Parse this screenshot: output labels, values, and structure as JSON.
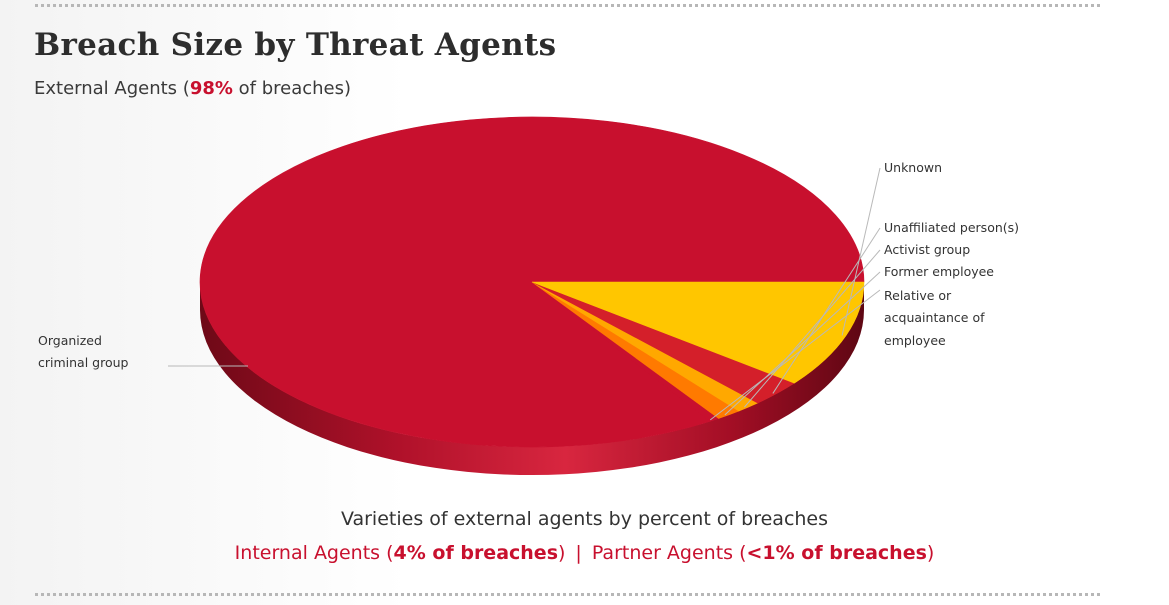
{
  "header": {
    "title": "Breach Size by Threat Agents",
    "subtitle_prefix": "External Agents (",
    "subtitle_highlight": "98%",
    "subtitle_suffix": " of breaches)"
  },
  "chart_data": {
    "type": "pie",
    "style": "3d",
    "title": "Breach Size by Threat Agents",
    "slices": [
      {
        "label": "Organized criminal group",
        "value": 84.0,
        "color": "#c8102e"
      },
      {
        "label": "Relative or acquaintance of employee",
        "value": 0.5,
        "color": "#c8102e"
      },
      {
        "label": "Former employee",
        "value": 1.2,
        "color": "#ff7a00"
      },
      {
        "label": "Activist group",
        "value": 1.2,
        "color": "#ffa800"
      },
      {
        "label": "Unaffiliated person(s)",
        "value": 2.6,
        "color": "#d41f2a"
      },
      {
        "label": "Unknown",
        "value": 10.5,
        "color": "#ffc600"
      }
    ],
    "legend": "callout-labels"
  },
  "caption": "Varieties of external agents by percent of breaches",
  "footer": {
    "internal_prefix": "Internal Agents (",
    "internal_highlight": "4% of breaches",
    "internal_suffix": ")",
    "separator": "|",
    "partner_prefix": "Partner Agents (",
    "partner_highlight": "<1% of breaches",
    "partner_suffix": ")"
  },
  "colors": {
    "accent": "#c8102e",
    "rim_dark": "#7a0a1c"
  }
}
